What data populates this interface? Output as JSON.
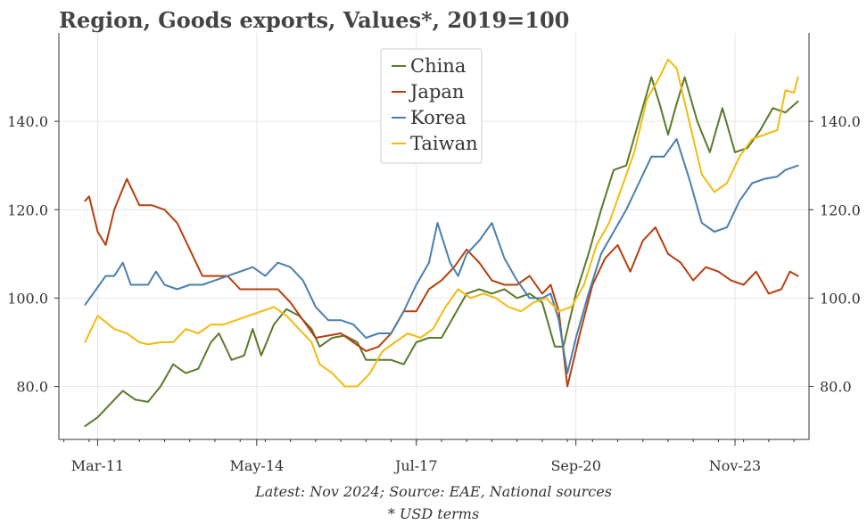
{
  "chart_data": {
    "type": "line",
    "title": "Region, Goods exports, Values*, 2019=100",
    "xlabel": "",
    "ylabel": "",
    "x_range": [
      2010.4,
      2025.3
    ],
    "ylim": [
      68,
      160
    ],
    "y_ticks": [
      80,
      100,
      120,
      140
    ],
    "y_tick_labels": [
      "80.0",
      "100.0",
      "120.0",
      "140.0"
    ],
    "x_ticks": [
      2011.17,
      2014.33,
      2017.5,
      2020.67,
      2023.83
    ],
    "x_tick_labels": [
      "Mar-11",
      "May-14",
      "Jul-17",
      "Sep-20",
      "Nov-23"
    ],
    "grid": true,
    "legend_position": "top-center",
    "footnotes": [
      "Latest: Nov 2024; Source: EAE, National sources",
      "* USD terms"
    ],
    "series": [
      {
        "name": "China",
        "color": "#5a7a2b",
        "points": [
          [
            2010.92,
            71
          ],
          [
            2011.17,
            73
          ],
          [
            2011.42,
            76
          ],
          [
            2011.67,
            79
          ],
          [
            2011.92,
            77
          ],
          [
            2012.17,
            76.5
          ],
          [
            2012.42,
            80
          ],
          [
            2012.67,
            85
          ],
          [
            2012.92,
            83
          ],
          [
            2013.17,
            84
          ],
          [
            2013.42,
            90
          ],
          [
            2013.58,
            92
          ],
          [
            2013.83,
            86
          ],
          [
            2014.08,
            87
          ],
          [
            2014.25,
            93
          ],
          [
            2014.42,
            87
          ],
          [
            2014.67,
            94
          ],
          [
            2014.92,
            97.5
          ],
          [
            2015.17,
            96
          ],
          [
            2015.42,
            93
          ],
          [
            2015.58,
            89
          ],
          [
            2015.83,
            91
          ],
          [
            2016.08,
            91.5
          ],
          [
            2016.33,
            90
          ],
          [
            2016.5,
            86
          ],
          [
            2016.75,
            86
          ],
          [
            2017,
            86
          ],
          [
            2017.25,
            85
          ],
          [
            2017.5,
            90
          ],
          [
            2017.75,
            91
          ],
          [
            2018,
            91
          ],
          [
            2018.25,
            96
          ],
          [
            2018.5,
            101
          ],
          [
            2018.75,
            102
          ],
          [
            2019,
            101
          ],
          [
            2019.25,
            102
          ],
          [
            2019.5,
            100
          ],
          [
            2019.75,
            101
          ],
          [
            2020,
            99
          ],
          [
            2020.25,
            89
          ],
          [
            2020.42,
            89
          ],
          [
            2020.67,
            101
          ],
          [
            2020.92,
            110
          ],
          [
            2021.17,
            120
          ],
          [
            2021.42,
            129
          ],
          [
            2021.67,
            130
          ],
          [
            2021.92,
            140
          ],
          [
            2022.17,
            150
          ],
          [
            2022.33,
            144
          ],
          [
            2022.5,
            137
          ],
          [
            2022.67,
            144
          ],
          [
            2022.83,
            150
          ],
          [
            2023.08,
            140
          ],
          [
            2023.33,
            133
          ],
          [
            2023.58,
            143
          ],
          [
            2023.83,
            133
          ],
          [
            2024.08,
            134
          ],
          [
            2024.33,
            138
          ],
          [
            2024.58,
            143
          ],
          [
            2024.83,
            142
          ],
          [
            2025.08,
            144.5
          ]
        ]
      },
      {
        "name": "Japan",
        "color": "#b5400f",
        "points": [
          [
            2010.92,
            122
          ],
          [
            2011,
            123
          ],
          [
            2011.17,
            115
          ],
          [
            2011.33,
            112
          ],
          [
            2011.5,
            120
          ],
          [
            2011.75,
            127
          ],
          [
            2012,
            121
          ],
          [
            2012.25,
            121
          ],
          [
            2012.5,
            120
          ],
          [
            2012.75,
            117
          ],
          [
            2013,
            111
          ],
          [
            2013.25,
            105
          ],
          [
            2013.5,
            105
          ],
          [
            2013.75,
            105
          ],
          [
            2014,
            102
          ],
          [
            2014.25,
            102
          ],
          [
            2014.5,
            102
          ],
          [
            2014.75,
            102
          ],
          [
            2015,
            99
          ],
          [
            2015.25,
            95
          ],
          [
            2015.5,
            91
          ],
          [
            2015.75,
            91.5
          ],
          [
            2016,
            92
          ],
          [
            2016.25,
            90
          ],
          [
            2016.5,
            88
          ],
          [
            2016.75,
            89
          ],
          [
            2017,
            92
          ],
          [
            2017.25,
            97
          ],
          [
            2017.5,
            97
          ],
          [
            2017.75,
            102
          ],
          [
            2018,
            104
          ],
          [
            2018.25,
            107
          ],
          [
            2018.5,
            111
          ],
          [
            2018.75,
            108
          ],
          [
            2019,
            104
          ],
          [
            2019.25,
            103
          ],
          [
            2019.5,
            103
          ],
          [
            2019.75,
            105
          ],
          [
            2020,
            101
          ],
          [
            2020.17,
            103
          ],
          [
            2020.33,
            97
          ],
          [
            2020.5,
            80
          ],
          [
            2020.75,
            92
          ],
          [
            2021,
            103
          ],
          [
            2021.25,
            109
          ],
          [
            2021.5,
            112
          ],
          [
            2021.75,
            106
          ],
          [
            2022,
            113
          ],
          [
            2022.25,
            116
          ],
          [
            2022.5,
            110
          ],
          [
            2022.75,
            108
          ],
          [
            2023,
            104
          ],
          [
            2023.25,
            107
          ],
          [
            2023.5,
            106
          ],
          [
            2023.75,
            104
          ],
          [
            2024,
            103
          ],
          [
            2024.25,
            106
          ],
          [
            2024.5,
            101
          ],
          [
            2024.75,
            102
          ],
          [
            2024.92,
            106
          ],
          [
            2025.08,
            105
          ]
        ]
      },
      {
        "name": "Korea",
        "color": "#4a7fae",
        "points": [
          [
            2010.92,
            98.5
          ],
          [
            2011.08,
            101
          ],
          [
            2011.33,
            105
          ],
          [
            2011.5,
            105
          ],
          [
            2011.67,
            108
          ],
          [
            2011.83,
            103
          ],
          [
            2012.17,
            103
          ],
          [
            2012.33,
            106
          ],
          [
            2012.5,
            103
          ],
          [
            2012.75,
            102
          ],
          [
            2013,
            103
          ],
          [
            2013.25,
            103
          ],
          [
            2013.5,
            104
          ],
          [
            2013.75,
            105
          ],
          [
            2014,
            106
          ],
          [
            2014.25,
            107
          ],
          [
            2014.5,
            105
          ],
          [
            2014.75,
            108
          ],
          [
            2015,
            107
          ],
          [
            2015.25,
            104
          ],
          [
            2015.5,
            98
          ],
          [
            2015.75,
            95
          ],
          [
            2016,
            95
          ],
          [
            2016.25,
            94
          ],
          [
            2016.5,
            91
          ],
          [
            2016.75,
            92
          ],
          [
            2017,
            92
          ],
          [
            2017.25,
            97
          ],
          [
            2017.5,
            103
          ],
          [
            2017.75,
            108
          ],
          [
            2017.92,
            117
          ],
          [
            2018.17,
            108
          ],
          [
            2018.33,
            105
          ],
          [
            2018.5,
            110
          ],
          [
            2018.75,
            113
          ],
          [
            2019,
            117
          ],
          [
            2019.25,
            109
          ],
          [
            2019.5,
            104
          ],
          [
            2019.75,
            100
          ],
          [
            2020,
            100
          ],
          [
            2020.17,
            101
          ],
          [
            2020.33,
            95
          ],
          [
            2020.5,
            83
          ],
          [
            2020.67,
            91
          ],
          [
            2020.92,
            101
          ],
          [
            2021.17,
            110
          ],
          [
            2021.42,
            115
          ],
          [
            2021.67,
            120
          ],
          [
            2021.92,
            126
          ],
          [
            2022.17,
            132
          ],
          [
            2022.42,
            132
          ],
          [
            2022.67,
            136
          ],
          [
            2022.92,
            127
          ],
          [
            2023.17,
            117
          ],
          [
            2023.42,
            115
          ],
          [
            2023.67,
            116
          ],
          [
            2023.92,
            122
          ],
          [
            2024.17,
            126
          ],
          [
            2024.42,
            127
          ],
          [
            2024.67,
            127.5
          ],
          [
            2024.83,
            129
          ],
          [
            2025.08,
            130
          ]
        ]
      },
      {
        "name": "Taiwan",
        "color": "#f2bb10",
        "points": [
          [
            2010.92,
            90
          ],
          [
            2011.17,
            96
          ],
          [
            2011.5,
            93
          ],
          [
            2011.75,
            92
          ],
          [
            2012,
            90
          ],
          [
            2012.17,
            89.5
          ],
          [
            2012.42,
            90
          ],
          [
            2012.67,
            90
          ],
          [
            2012.92,
            93
          ],
          [
            2013.17,
            92
          ],
          [
            2013.42,
            94
          ],
          [
            2013.67,
            94
          ],
          [
            2013.92,
            95
          ],
          [
            2014.17,
            96
          ],
          [
            2014.42,
            97
          ],
          [
            2014.67,
            98
          ],
          [
            2014.92,
            96
          ],
          [
            2015.17,
            93
          ],
          [
            2015.42,
            90
          ],
          [
            2015.58,
            85
          ],
          [
            2015.83,
            83
          ],
          [
            2016.08,
            80
          ],
          [
            2016.33,
            80
          ],
          [
            2016.58,
            83
          ],
          [
            2016.83,
            88
          ],
          [
            2017.08,
            90
          ],
          [
            2017.33,
            92
          ],
          [
            2017.58,
            91
          ],
          [
            2017.83,
            93
          ],
          [
            2018.08,
            98
          ],
          [
            2018.33,
            102
          ],
          [
            2018.58,
            100
          ],
          [
            2018.83,
            101
          ],
          [
            2019.08,
            100
          ],
          [
            2019.33,
            98
          ],
          [
            2019.58,
            97
          ],
          [
            2019.83,
            99
          ],
          [
            2020.08,
            100
          ],
          [
            2020.33,
            97
          ],
          [
            2020.58,
            98
          ],
          [
            2020.83,
            103
          ],
          [
            2021.08,
            112
          ],
          [
            2021.33,
            117
          ],
          [
            2021.58,
            125
          ],
          [
            2021.83,
            133
          ],
          [
            2022.08,
            145
          ],
          [
            2022.33,
            150
          ],
          [
            2022.5,
            154
          ],
          [
            2022.67,
            152
          ],
          [
            2022.92,
            140
          ],
          [
            2023.17,
            128
          ],
          [
            2023.42,
            124
          ],
          [
            2023.67,
            126
          ],
          [
            2023.92,
            132
          ],
          [
            2024.17,
            136
          ],
          [
            2024.42,
            137
          ],
          [
            2024.67,
            138
          ],
          [
            2024.83,
            147
          ],
          [
            2025,
            146.5
          ],
          [
            2025.08,
            150
          ]
        ]
      }
    ]
  }
}
